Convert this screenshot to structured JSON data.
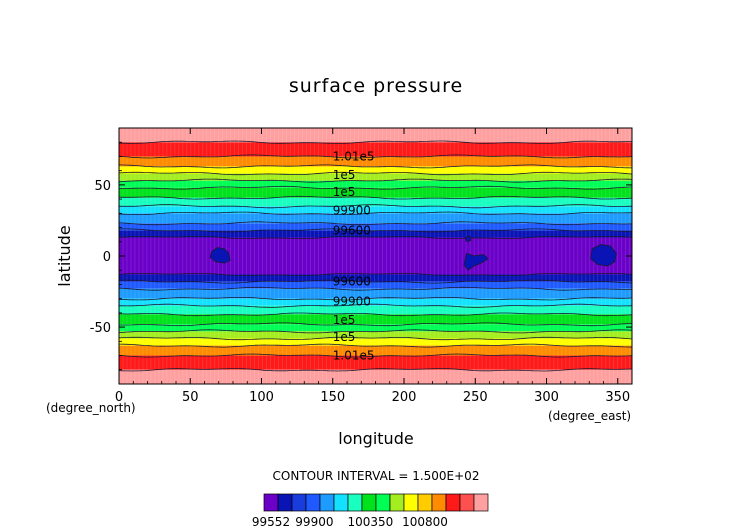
{
  "chart_data": {
    "type": "heatmap",
    "title": "surface pressure",
    "xlabel": "longitude",
    "ylabel": "latitude",
    "x_unit": "(degree_east)",
    "y_unit": "(degree_north)",
    "xlim": [
      0,
      360
    ],
    "ylim": [
      -90,
      90
    ],
    "x_ticks": [
      0,
      50,
      100,
      150,
      200,
      250,
      300,
      350
    ],
    "y_ticks": [
      -50,
      0,
      50
    ],
    "contour_interval_text": "CONTOUR INTERVAL = 1.500E+02",
    "contour_labels": [
      {
        "text": "1.01e5",
        "lon": 150,
        "lat": 70
      },
      {
        "text": "1e5",
        "lon": 150,
        "lat": 57
      },
      {
        "text": "1e5",
        "lon": 150,
        "lat": 45
      },
      {
        "text": "99900",
        "lon": 150,
        "lat": 32
      },
      {
        "text": "99600",
        "lon": 150,
        "lat": 18
      },
      {
        "text": "99600",
        "lon": 150,
        "lat": -18
      },
      {
        "text": "99900",
        "lon": 150,
        "lat": -32
      },
      {
        "text": "1e5",
        "lon": 150,
        "lat": -45
      },
      {
        "text": "1e5",
        "lon": 150,
        "lat": -57
      },
      {
        "text": "1.01e5",
        "lon": 150,
        "lat": -70
      }
    ],
    "colorbar_labels": [
      "99552",
      "99900",
      "100350",
      "100800"
    ],
    "colors": {
      "violet": "#6b00c8",
      "navy": "#0a14b4",
      "blue": "#1e5aff",
      "skyblue": "#1e9bff",
      "cyan": "#14e1ff",
      "aquamarine": "#18ffc0",
      "green": "#00e21c",
      "brightgreen": "#00ff55",
      "yellowgreen": "#a4ee20",
      "yellow": "#ffff00",
      "orange": "#ff8c00",
      "red": "#ff1a1a",
      "pink": "#ffa0a0"
    }
  }
}
